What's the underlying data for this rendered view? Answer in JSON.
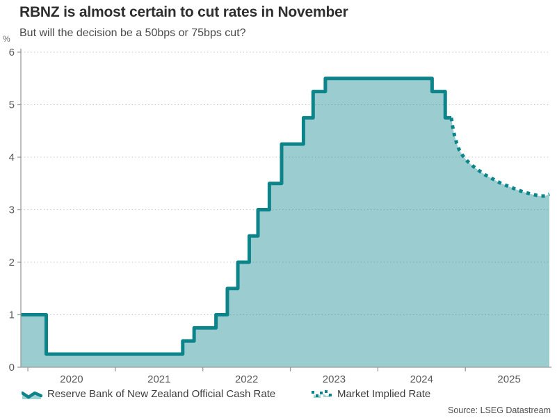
{
  "header": {
    "title": "RBNZ is almost certain to cut rates in November",
    "subtitle": "But will the decision be a 50bps or 75bps cut?"
  },
  "axis_unit_label": "%",
  "source_text": "Source: LSEG Datastream",
  "legend": {
    "items": [
      {
        "label": "Reserve Bank of New Zealand Official Cash Rate",
        "style": "solid"
      },
      {
        "label": "Market Implied Rate",
        "style": "dotted"
      }
    ]
  },
  "colors": {
    "line": "#0D848A",
    "fill": "rgba(13,132,138,0.41)",
    "grid": "#c6c6c6",
    "axis": "#9a9a9a",
    "tick_text": "#595959",
    "title_text": "#2e2e2e",
    "subtitle_text": "#4a4a4a",
    "legend_text": "#3d3d3d",
    "source_text": "#4d4d4d"
  },
  "chart_data": {
    "type": "line",
    "title": "RBNZ is almost certain to cut rates in November",
    "subtitle": "But will the decision be a 50bps or 75bps cut?",
    "xlabel": "",
    "ylabel": "%",
    "ylim": [
      0,
      6
    ],
    "yticks": [
      0,
      1,
      2,
      3,
      4,
      5,
      6
    ],
    "x_domain": [
      2019.92,
      2025.96
    ],
    "xtick_years": [
      2020,
      2021,
      2022,
      2023,
      2024,
      2025
    ],
    "xtick_labels": [
      "2020",
      "2021",
      "2022",
      "2023",
      "2024",
      "2025"
    ],
    "grid": "dotted horizontal",
    "legend_position": "bottom",
    "series": [
      {
        "name": "Reserve Bank of New Zealand Official Cash Rate",
        "style": "step-area-solid",
        "note": "points are [decimal_year, rate_percent]; rate holds until next point",
        "points": [
          [
            2019.92,
            1.0
          ],
          [
            2020.21,
            0.25
          ],
          [
            2021.77,
            0.5
          ],
          [
            2021.9,
            0.75
          ],
          [
            2022.15,
            1.0
          ],
          [
            2022.28,
            1.5
          ],
          [
            2022.4,
            2.0
          ],
          [
            2022.53,
            2.5
          ],
          [
            2022.63,
            3.0
          ],
          [
            2022.76,
            3.5
          ],
          [
            2022.9,
            4.25
          ],
          [
            2023.15,
            4.75
          ],
          [
            2023.26,
            5.25
          ],
          [
            2023.4,
            5.5
          ],
          [
            2024.62,
            5.25
          ],
          [
            2024.77,
            4.75
          ],
          [
            2024.84,
            4.75
          ]
        ]
      },
      {
        "name": "Market Implied Rate",
        "style": "dotted-line",
        "points": [
          [
            2024.84,
            4.75
          ],
          [
            2024.855,
            4.58
          ],
          [
            2024.875,
            4.42
          ],
          [
            2024.9,
            4.27
          ],
          [
            2024.93,
            4.14
          ],
          [
            2024.97,
            4.03
          ],
          [
            2025.02,
            3.93
          ],
          [
            2025.08,
            3.84
          ],
          [
            2025.15,
            3.75
          ],
          [
            2025.23,
            3.66
          ],
          [
            2025.32,
            3.58
          ],
          [
            2025.41,
            3.5
          ],
          [
            2025.5,
            3.44
          ],
          [
            2025.59,
            3.38
          ],
          [
            2025.68,
            3.33
          ],
          [
            2025.77,
            3.29
          ],
          [
            2025.85,
            3.26
          ],
          [
            2025.91,
            3.26
          ],
          [
            2025.96,
            3.3
          ]
        ]
      }
    ]
  }
}
